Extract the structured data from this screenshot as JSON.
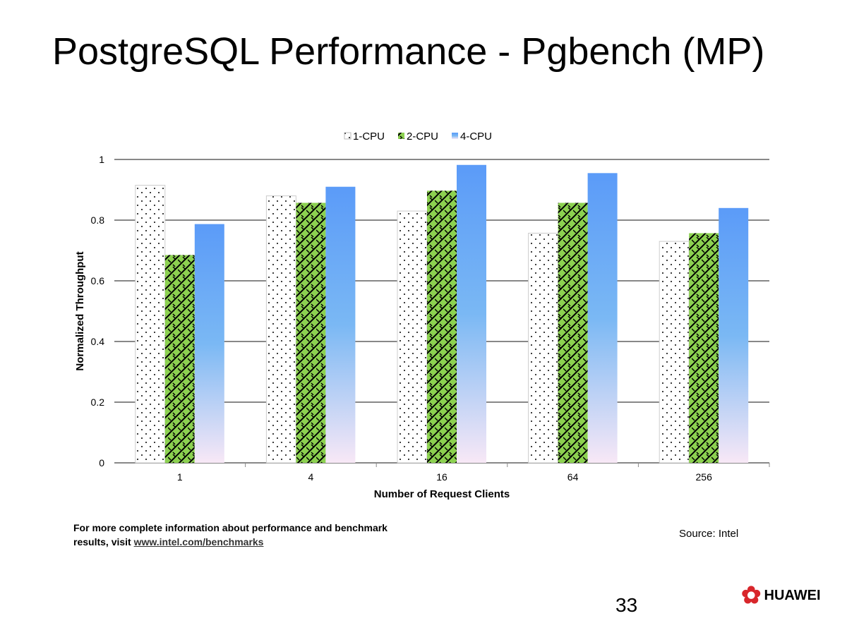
{
  "slide": {
    "title": "PostgreSQL Performance  - Pgbench (MP)",
    "footnote_line1": "For more complete information about performance and benchmark",
    "footnote_prefix": "results, visit ",
    "footnote_link": "www.intel.com/benchmarks",
    "source": "Source: Intel",
    "page_number": "33",
    "logo_text": "HUAWEI"
  },
  "chart_data": {
    "type": "bar",
    "title": "",
    "xlabel": "Number  of Request Clients",
    "ylabel": "Normalized Throughput",
    "ylim": [
      0,
      1
    ],
    "yticks": [
      "0",
      "0.2",
      "0.4",
      "0.6",
      "0.8",
      "1"
    ],
    "categories": [
      "1",
      "4",
      "16",
      "64",
      "256"
    ],
    "legend": "top-center",
    "series": [
      {
        "name": "1-CPU",
        "values": [
          0.915,
          0.88,
          0.83,
          0.757,
          0.73
        ]
      },
      {
        "name": "2-CPU",
        "values": [
          0.685,
          0.857,
          0.897,
          0.857,
          0.757
        ]
      },
      {
        "name": "4-CPU",
        "values": [
          0.787,
          0.91,
          0.982,
          0.955,
          0.84
        ]
      }
    ]
  }
}
